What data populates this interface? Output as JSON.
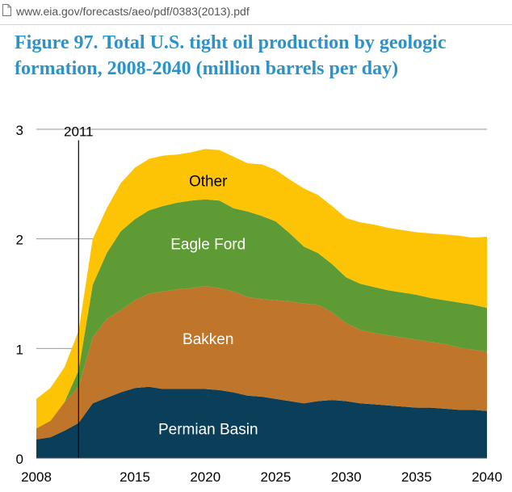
{
  "browser": {
    "url": "www.eia.gov/forecasts/aeo/pdf/0383(2013).pdf"
  },
  "title": "Figure 97. Total U.S. tight oil production by geologic formation, 2008-2040 (million barrels per day)",
  "chart_data": {
    "type": "area",
    "stacked": true,
    "title": "Figure 97. Total U.S. tight oil production by geologic formation, 2008-2040 (million barrels per day)",
    "xlabel": "",
    "ylabel": "",
    "xlim": [
      2008,
      2040
    ],
    "ylim": [
      0,
      3
    ],
    "x_ticks": [
      "2008",
      "2015",
      "2020",
      "2025",
      "2030",
      "2035",
      "2040"
    ],
    "x_tick_values": [
      2008,
      2015,
      2020,
      2025,
      2030,
      2035,
      2040
    ],
    "y_ticks": [
      "0",
      "1",
      "2",
      "3"
    ],
    "y_tick_values": [
      0,
      1,
      2,
      3
    ],
    "grid": true,
    "annotation": {
      "label": "2011",
      "x": 2011
    },
    "x": [
      2008,
      2009,
      2010,
      2011,
      2012,
      2013,
      2014,
      2015,
      2016,
      2017,
      2018,
      2019,
      2020,
      2021,
      2022,
      2023,
      2024,
      2025,
      2026,
      2027,
      2028,
      2029,
      2030,
      2031,
      2032,
      2033,
      2034,
      2035,
      2036,
      2037,
      2038,
      2039,
      2040
    ],
    "series": [
      {
        "name": "Permian Basin",
        "color": "#0a3e59",
        "values": [
          0.17,
          0.19,
          0.25,
          0.32,
          0.5,
          0.55,
          0.6,
          0.64,
          0.65,
          0.63,
          0.63,
          0.63,
          0.63,
          0.62,
          0.6,
          0.57,
          0.56,
          0.54,
          0.52,
          0.5,
          0.52,
          0.53,
          0.52,
          0.5,
          0.49,
          0.48,
          0.47,
          0.46,
          0.46,
          0.45,
          0.44,
          0.44,
          0.43
        ]
      },
      {
        "name": "Bakken",
        "color": "#bf762b",
        "values": [
          0.1,
          0.15,
          0.26,
          0.33,
          0.6,
          0.72,
          0.75,
          0.8,
          0.85,
          0.89,
          0.91,
          0.92,
          0.94,
          0.93,
          0.92,
          0.9,
          0.89,
          0.9,
          0.91,
          0.91,
          0.88,
          0.8,
          0.71,
          0.67,
          0.65,
          0.64,
          0.63,
          0.62,
          0.6,
          0.59,
          0.57,
          0.55,
          0.54
        ]
      },
      {
        "name": "Eagle Ford",
        "color": "#5e9b35",
        "values": [
          0.0,
          0.0,
          0.0,
          0.15,
          0.48,
          0.6,
          0.72,
          0.74,
          0.76,
          0.78,
          0.79,
          0.8,
          0.79,
          0.8,
          0.76,
          0.78,
          0.76,
          0.72,
          0.62,
          0.52,
          0.47,
          0.44,
          0.42,
          0.42,
          0.42,
          0.41,
          0.41,
          0.41,
          0.4,
          0.4,
          0.41,
          0.41,
          0.4
        ]
      },
      {
        "name": "Other",
        "color": "#fdc405",
        "values": [
          0.27,
          0.3,
          0.32,
          0.36,
          0.42,
          0.41,
          0.44,
          0.47,
          0.47,
          0.46,
          0.44,
          0.44,
          0.46,
          0.46,
          0.47,
          0.44,
          0.47,
          0.47,
          0.49,
          0.53,
          0.53,
          0.53,
          0.54,
          0.56,
          0.57,
          0.57,
          0.57,
          0.57,
          0.59,
          0.6,
          0.61,
          0.61,
          0.65
        ]
      }
    ]
  }
}
